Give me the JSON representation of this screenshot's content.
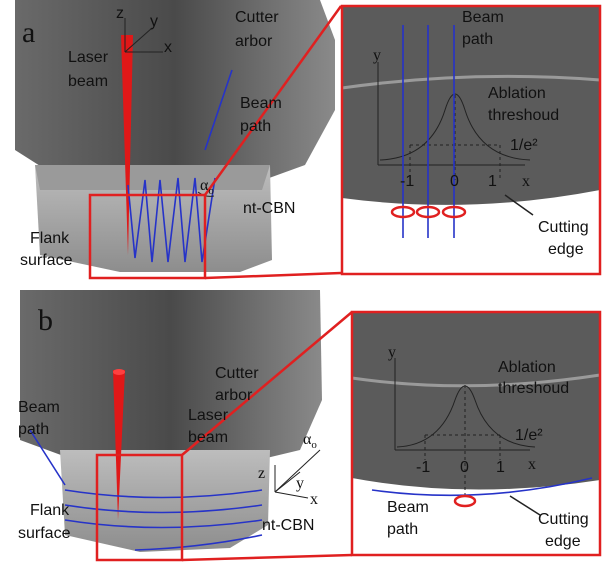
{
  "panels": [
    {
      "label": "a",
      "axes": {
        "z": "z",
        "y": "y",
        "x": "x"
      },
      "laser_beam": [
        "Laser",
        "beam"
      ],
      "cutter_arbor": [
        "Cutter",
        "arbor"
      ],
      "beam_path": [
        "Beam",
        "path"
      ],
      "angle": {
        "symbol": "α",
        "subscript": "o"
      },
      "material": "nt-CBN",
      "flank_surface": [
        "Flank",
        "surface"
      ],
      "inset": {
        "y_axis": "y",
        "x_axis": "x",
        "beam_path": [
          "Beam",
          "path"
        ],
        "threshold": [
          "Ablation",
          "threshoud"
        ],
        "level": "1/e²",
        "ticks": [
          "-1",
          "0",
          "1"
        ],
        "cutting_edge": [
          "Cutting",
          "edge"
        ]
      }
    },
    {
      "label": "b",
      "axes": {
        "z": "z",
        "y": "y",
        "x": "x"
      },
      "laser_beam": [
        "Laser",
        "beam"
      ],
      "cutter_arbor": [
        "Cutter",
        "arbor"
      ],
      "beam_path": [
        "Beam",
        "path"
      ],
      "angle": {
        "symbol": "α",
        "subscript": "o"
      },
      "material": "nt-CBN",
      "flank_surface": [
        "Flank",
        "surface"
      ],
      "inset": {
        "y_axis": "y",
        "x_axis": "x",
        "beam_path": [
          "Beam",
          "path"
        ],
        "threshold": [
          "Ablation",
          "threshoud"
        ],
        "level": "1/e²",
        "ticks": [
          "-1",
          "0",
          "1"
        ],
        "cutting_edge": [
          "Cutting",
          "edge"
        ]
      }
    }
  ]
}
